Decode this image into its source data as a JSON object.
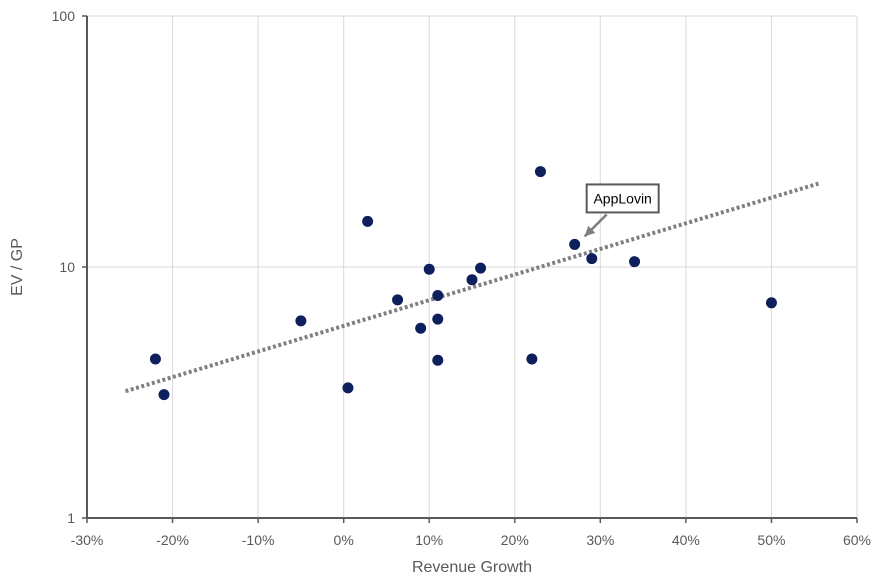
{
  "chart_data": {
    "type": "scatter",
    "title": "",
    "xlabel": "Revenue Growth",
    "ylabel": "EV / GP",
    "xlim": [
      -0.3,
      0.6
    ],
    "ylim": [
      1,
      100
    ],
    "y_scale": "log",
    "grid": true,
    "x_ticks": [
      -0.3,
      -0.2,
      -0.1,
      0,
      0.1,
      0.2,
      0.3,
      0.4,
      0.5,
      0.6
    ],
    "x_tick_labels": [
      "-30%",
      "-20%",
      "-10%",
      "0%",
      "10%",
      "20%",
      "30%",
      "40%",
      "50%",
      "60%"
    ],
    "y_ticks": [
      1,
      10,
      100
    ],
    "y_tick_labels": [
      "1",
      "10",
      "100"
    ],
    "colors": {
      "points": "#0D1F5C",
      "trendline": "#808080",
      "axis": "#595959",
      "grid": "#D9D9D9"
    },
    "series": [
      {
        "points": [
          {
            "x": -0.22,
            "y": 4.3
          },
          {
            "x": -0.21,
            "y": 3.1
          },
          {
            "x": -0.05,
            "y": 6.1
          },
          {
            "x": 0.005,
            "y": 3.3
          },
          {
            "x": 0.028,
            "y": 15.2
          },
          {
            "x": 0.063,
            "y": 7.4
          },
          {
            "x": 0.09,
            "y": 5.7
          },
          {
            "x": 0.1,
            "y": 9.8
          },
          {
            "x": 0.11,
            "y": 7.7
          },
          {
            "x": 0.11,
            "y": 6.2
          },
          {
            "x": 0.11,
            "y": 4.25
          },
          {
            "x": 0.15,
            "y": 8.9
          },
          {
            "x": 0.16,
            "y": 9.9
          },
          {
            "x": 0.22,
            "y": 4.3
          },
          {
            "x": 0.23,
            "y": 24.0
          },
          {
            "x": 0.27,
            "y": 12.3
          },
          {
            "x": 0.29,
            "y": 10.8
          },
          {
            "x": 0.34,
            "y": 10.5
          },
          {
            "x": 0.5,
            "y": 7.2
          }
        ]
      }
    ],
    "trendline": {
      "type": "exponential",
      "style": "dotted",
      "x_start": -0.255,
      "y_start": 3.2,
      "x_end": 0.555,
      "y_end": 21.5
    },
    "annotations": [
      {
        "text": "AppLovin",
        "x": 0.27,
        "y": 12.3
      }
    ]
  }
}
